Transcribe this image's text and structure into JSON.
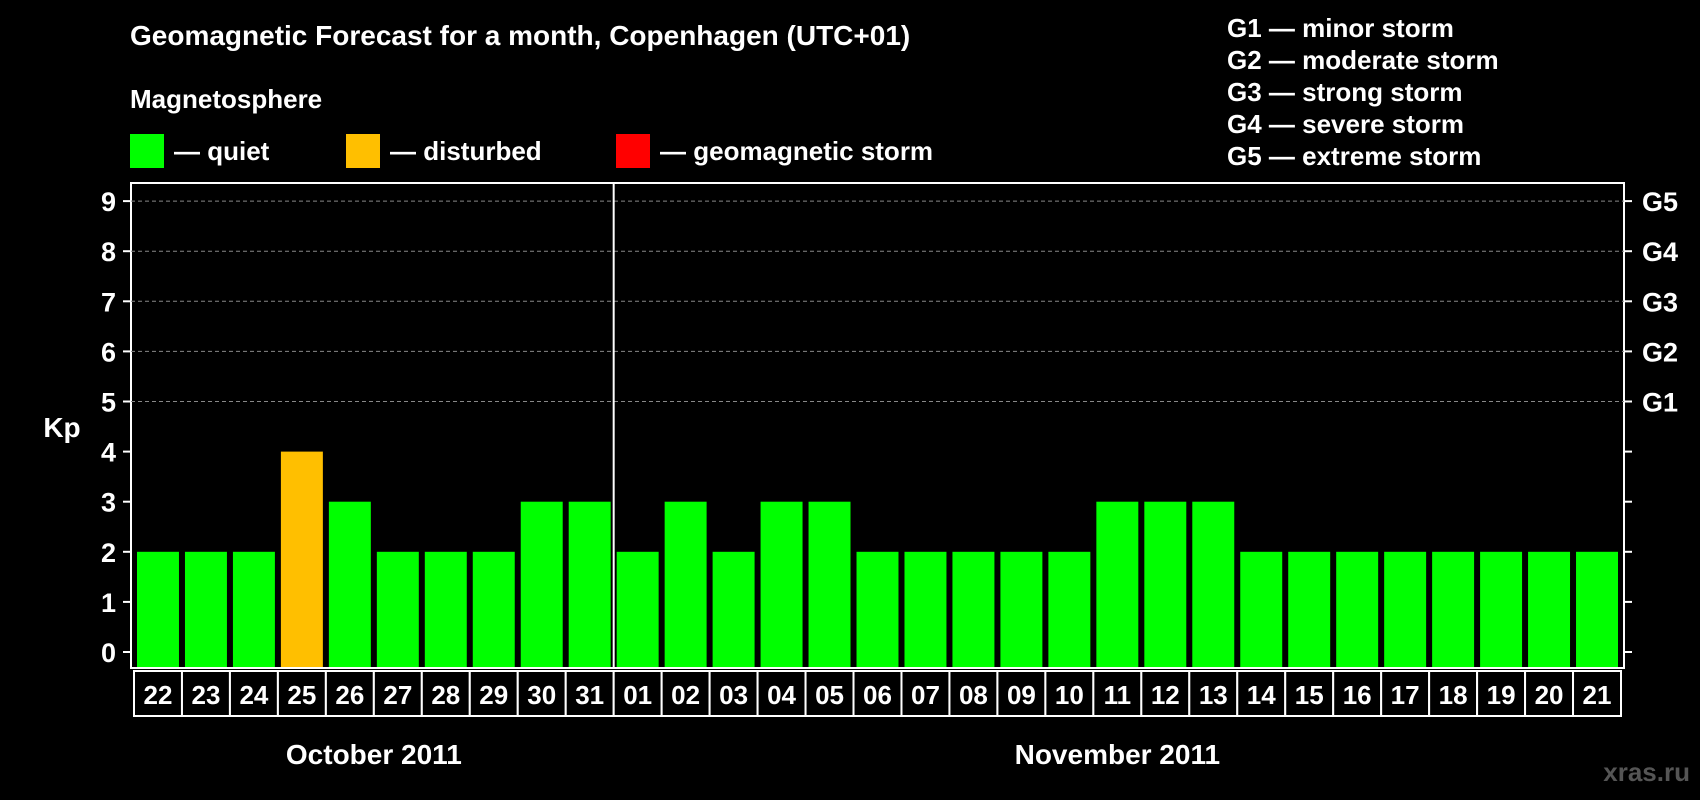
{
  "title": "Geomagnetic Forecast for a month, Copenhagen (UTC+01)",
  "section_label": "Magnetosphere",
  "legend": [
    {
      "label": "— quiet",
      "color": "#00ff00"
    },
    {
      "label": "— disturbed",
      "color": "#ffbf00"
    },
    {
      "label": "— geomagnetic storm",
      "color": "#ff0000"
    }
  ],
  "storm_legend": [
    "G1 — minor storm",
    "G2 — moderate storm",
    "G3 — strong storm",
    "G4 — severe storm",
    "G5 — extreme storm"
  ],
  "watermark": "xras.ru",
  "chart_data": {
    "type": "bar",
    "ylabel": "Kp",
    "ylim": [
      0,
      9
    ],
    "y_ticks": [
      0,
      1,
      2,
      3,
      4,
      5,
      6,
      7,
      8,
      9
    ],
    "right_axis_labels": [
      {
        "value": 5,
        "label": "G1"
      },
      {
        "value": 6,
        "label": "G2"
      },
      {
        "value": 7,
        "label": "G3"
      },
      {
        "value": 8,
        "label": "G4"
      },
      {
        "value": 9,
        "label": "G5"
      }
    ],
    "grid": "dashed horizontal",
    "categories": [
      "22",
      "23",
      "24",
      "25",
      "26",
      "27",
      "28",
      "29",
      "30",
      "31",
      "01",
      "02",
      "03",
      "04",
      "05",
      "06",
      "07",
      "08",
      "09",
      "10",
      "11",
      "12",
      "13",
      "14",
      "15",
      "16",
      "17",
      "18",
      "19",
      "20",
      "21"
    ],
    "values": [
      2,
      2,
      2,
      4,
      3,
      2,
      2,
      2,
      3,
      3,
      2,
      3,
      2,
      3,
      3,
      2,
      2,
      2,
      2,
      2,
      3,
      3,
      3,
      2,
      2,
      2,
      2,
      2,
      2,
      2,
      2
    ],
    "bar_status": [
      "quiet",
      "quiet",
      "quiet",
      "disturbed",
      "quiet",
      "quiet",
      "quiet",
      "quiet",
      "quiet",
      "quiet",
      "quiet",
      "quiet",
      "quiet",
      "quiet",
      "quiet",
      "quiet",
      "quiet",
      "quiet",
      "quiet",
      "quiet",
      "quiet",
      "quiet",
      "quiet",
      "quiet",
      "quiet",
      "quiet",
      "quiet",
      "quiet",
      "quiet",
      "quiet",
      "quiet"
    ],
    "status_colors": {
      "quiet": "#00ff00",
      "disturbed": "#ffbf00",
      "storm": "#ff0000"
    },
    "months": [
      {
        "label": "October 2011",
        "start_index": 0,
        "end_index": 9
      },
      {
        "label": "November 2011",
        "start_index": 10,
        "end_index": 30
      }
    ]
  }
}
